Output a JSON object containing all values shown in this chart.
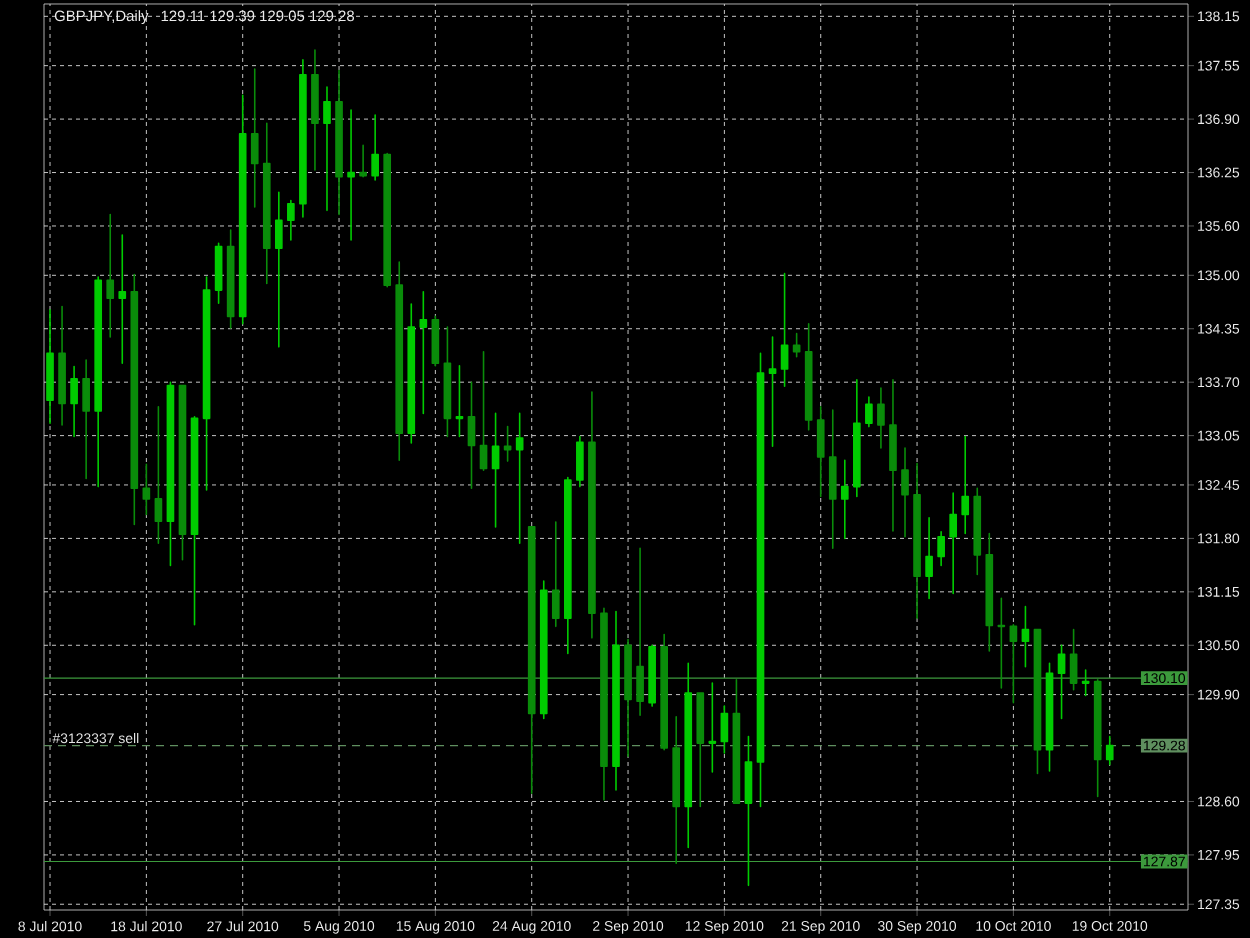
{
  "chart_data": {
    "type": "candlestick",
    "title": "GBPJPY,Daily",
    "subtitle": "129.11 129.39 129.05 129.28",
    "categories": [
      "8 Jul 2010",
      null,
      null,
      null,
      null,
      null,
      null,
      null,
      "18 Jul 2010",
      null,
      null,
      null,
      null,
      null,
      null,
      null,
      "27 Jul 2010",
      null,
      null,
      null,
      null,
      null,
      null,
      null,
      "5 Aug 2010",
      null,
      null,
      null,
      null,
      null,
      null,
      null,
      "15 Aug 2010",
      null,
      null,
      null,
      null,
      null,
      null,
      null,
      "24 Aug 2010",
      null,
      null,
      null,
      null,
      null,
      null,
      null,
      "2 Sep 2010",
      null,
      null,
      null,
      null,
      null,
      null,
      null,
      "12 Sep 2010",
      null,
      null,
      null,
      null,
      null,
      null,
      null,
      "21 Sep 2010",
      null,
      null,
      null,
      null,
      null,
      null,
      null,
      "30 Sep 2010",
      null,
      null,
      null,
      null,
      null,
      null,
      null,
      "10 Oct 2010",
      null,
      null,
      null,
      null,
      null,
      null,
      null,
      "19 Oct 2010",
      null,
      null,
      null,
      null,
      null,
      null
    ],
    "ohlc": [
      [
        133.48,
        134.58,
        133.2,
        134.05
      ],
      [
        134.05,
        134.62,
        133.18,
        133.44
      ],
      [
        133.44,
        133.89,
        133.04,
        133.74
      ],
      [
        133.74,
        133.97,
        132.53,
        133.35
      ],
      [
        133.35,
        134.98,
        132.43,
        134.94
      ],
      [
        134.94,
        135.74,
        134.25,
        134.72
      ],
      [
        134.72,
        135.49,
        133.93,
        134.8
      ],
      [
        134.8,
        135.01,
        131.97,
        132.41
      ],
      [
        132.41,
        132.7,
        132.09,
        132.28
      ],
      [
        132.28,
        133.4,
        131.74,
        132.01
      ],
      [
        132.01,
        133.7,
        131.47,
        133.66
      ],
      [
        133.66,
        133.66,
        131.54,
        131.85
      ],
      [
        131.85,
        133.28,
        130.75,
        133.26
      ],
      [
        133.26,
        134.98,
        132.39,
        134.82
      ],
      [
        134.82,
        135.39,
        134.66,
        135.35
      ],
      [
        135.35,
        135.55,
        134.36,
        134.5
      ],
      [
        134.5,
        137.19,
        134.41,
        136.72
      ],
      [
        136.72,
        137.51,
        135.83,
        136.36
      ],
      [
        136.36,
        136.85,
        134.9,
        135.33
      ],
      [
        135.33,
        136.01,
        134.13,
        135.67
      ],
      [
        135.67,
        135.91,
        135.43,
        135.87
      ],
      [
        135.87,
        137.62,
        135.71,
        137.44
      ],
      [
        137.44,
        137.74,
        136.28,
        136.85
      ],
      [
        136.85,
        137.29,
        135.79,
        137.11
      ],
      [
        137.11,
        137.49,
        135.74,
        136.2
      ],
      [
        136.2,
        137.01,
        135.43,
        136.25
      ],
      [
        136.25,
        136.58,
        136.2,
        136.21
      ],
      [
        136.21,
        136.95,
        136.16,
        136.47
      ],
      [
        136.47,
        136.48,
        134.86,
        134.88
      ],
      [
        134.88,
        135.16,
        132.75,
        133.08
      ],
      [
        133.08,
        134.65,
        132.96,
        134.37
      ],
      [
        134.37,
        134.8,
        133.32,
        134.46
      ],
      [
        134.46,
        134.5,
        133.9,
        133.93
      ],
      [
        133.93,
        134.37,
        133.04,
        133.26
      ],
      [
        133.26,
        133.9,
        133.04,
        133.28
      ],
      [
        133.28,
        133.7,
        132.41,
        132.93
      ],
      [
        132.93,
        134.07,
        132.63,
        132.65
      ],
      [
        132.65,
        133.32,
        131.94,
        132.92
      ],
      [
        132.92,
        133.16,
        132.74,
        132.88
      ],
      [
        132.88,
        133.32,
        131.74,
        133.02
      ],
      [
        131.94,
        131.94,
        128.7,
        129.67
      ],
      [
        129.67,
        131.28,
        129.61,
        131.17
      ],
      [
        131.17,
        132.0,
        130.73,
        130.83
      ],
      [
        130.83,
        132.54,
        130.4,
        132.51
      ],
      [
        132.51,
        133.04,
        132.43,
        132.97
      ],
      [
        132.97,
        133.58,
        130.59,
        130.89
      ],
      [
        130.89,
        130.95,
        128.62,
        129.03
      ],
      [
        129.03,
        130.91,
        128.74,
        130.5
      ],
      [
        130.5,
        130.57,
        129.15,
        129.84
      ],
      [
        130.24,
        131.68,
        129.65,
        129.82
      ],
      [
        129.8,
        130.5,
        129.76,
        130.48
      ],
      [
        130.48,
        130.63,
        129.23,
        129.25
      ],
      [
        129.25,
        129.63,
        127.85,
        128.54
      ],
      [
        128.54,
        130.28,
        128.04,
        129.92
      ],
      [
        129.92,
        129.92,
        128.54,
        129.31
      ],
      [
        129.31,
        130.04,
        128.96,
        129.33
      ],
      [
        129.33,
        129.76,
        129.19,
        129.67
      ],
      [
        129.67,
        130.08,
        128.58,
        128.58
      ],
      [
        128.58,
        129.39,
        127.58,
        129.08
      ],
      [
        129.08,
        134.05,
        128.54,
        133.81
      ],
      [
        133.81,
        134.25,
        132.92,
        133.86
      ],
      [
        133.86,
        135.02,
        133.65,
        134.15
      ],
      [
        134.15,
        134.29,
        134.01,
        134.07
      ],
      [
        134.07,
        134.41,
        133.12,
        133.24
      ],
      [
        133.24,
        133.4,
        132.31,
        132.79
      ],
      [
        132.79,
        133.36,
        131.68,
        132.28
      ],
      [
        132.28,
        132.75,
        131.8,
        132.43
      ],
      [
        132.43,
        133.73,
        132.31,
        133.2
      ],
      [
        133.2,
        133.52,
        133.16,
        133.43
      ],
      [
        133.43,
        133.63,
        132.9,
        133.18
      ],
      [
        133.18,
        133.73,
        131.89,
        132.63
      ],
      [
        132.63,
        132.9,
        131.82,
        132.33
      ],
      [
        132.33,
        132.71,
        130.83,
        131.34
      ],
      [
        131.34,
        132.05,
        131.07,
        131.58
      ],
      [
        131.58,
        131.88,
        131.47,
        131.82
      ],
      [
        131.82,
        132.35,
        131.13,
        132.09
      ],
      [
        132.09,
        133.04,
        131.86,
        132.31
      ],
      [
        132.31,
        132.41,
        131.36,
        131.6
      ],
      [
        131.6,
        131.86,
        130.43,
        130.74
      ],
      [
        130.74,
        131.07,
        129.98,
        130.73
      ],
      [
        130.73,
        130.75,
        129.8,
        130.55
      ],
      [
        130.55,
        130.97,
        130.24,
        130.69
      ],
      [
        130.69,
        130.69,
        128.94,
        129.23
      ],
      [
        129.23,
        130.28,
        128.97,
        130.16
      ],
      [
        130.16,
        130.5,
        129.61,
        130.39
      ],
      [
        130.39,
        130.69,
        129.96,
        130.04
      ],
      [
        130.04,
        130.2,
        129.89,
        130.06
      ],
      [
        130.06,
        130.08,
        128.66,
        129.11
      ],
      [
        129.11,
        129.39,
        129.05,
        129.28
      ],
      null,
      null,
      null,
      null,
      null,
      null
    ],
    "colors": [
      "#00cc00",
      "#0a8c0a",
      "#00cc00",
      "#0a8c0a",
      "#00cc00",
      "#0a8c0a",
      "#00cc00",
      "#0a8c0a",
      "#0a8c0a",
      "#0a8c0a",
      "#00cc00",
      "#0a8c0a",
      "#00cc00",
      "#00cc00",
      "#00cc00",
      "#0a8c0a",
      "#00cc00",
      "#0a8c0a",
      "#0a8c0a",
      "#00cc00",
      "#00cc00",
      "#00cc00",
      "#0a8c0a",
      "#00cc00",
      "#0a8c0a",
      "#00cc00",
      "#0a8c0a",
      "#00cc00",
      "#0a8c0a",
      "#0a8c0a",
      "#00cc00",
      "#00cc00",
      "#0a8c0a",
      "#0a8c0a",
      "#00cc00",
      "#0a8c0a",
      "#0a8c0a",
      "#00cc00",
      "#0a8c0a",
      "#00cc00",
      "#0a8c0a",
      "#00cc00",
      "#0a8c0a",
      "#00cc00",
      "#00cc00",
      "#0a8c0a",
      "#0a8c0a",
      "#00cc00",
      "#0a8c0a",
      "#0a8c0a",
      "#00cc00",
      "#0a8c0a",
      "#0a8c0a",
      "#00cc00",
      "#0a8c0a",
      "#00cc00",
      "#00cc00",
      "#0a8c0a",
      "#00cc00",
      "#00cc00",
      "#00cc00",
      "#00cc00",
      "#0a8c0a",
      "#0a8c0a",
      "#0a8c0a",
      "#0a8c0a",
      "#00cc00",
      "#00cc00",
      "#00cc00",
      "#0a8c0a",
      "#0a8c0a",
      "#0a8c0a",
      "#0a8c0a",
      "#00cc00",
      "#00cc00",
      "#00cc00",
      "#00cc00",
      "#0a8c0a",
      "#0a8c0a",
      "#0a8c0a",
      "#0a8c0a",
      "#00cc00",
      "#0a8c0a",
      "#00cc00",
      "#00cc00",
      "#0a8c0a",
      "#00cc00",
      "#0a8c0a",
      "#00cc00",
      null,
      null,
      null,
      null,
      null,
      null
    ],
    "ylim": [
      127.28,
      138.3
    ],
    "yticks": [
      {
        "value": 138.15,
        "label": "138.15"
      },
      {
        "value": 137.55,
        "label": "137.55"
      },
      {
        "value": 136.9,
        "label": "136.90"
      },
      {
        "value": 136.25,
        "label": "136.25"
      },
      {
        "value": 135.6,
        "label": "135.60"
      },
      {
        "value": 135.0,
        "label": "135.00"
      },
      {
        "value": 134.35,
        "label": "134.35"
      },
      {
        "value": 133.7,
        "label": "133.70"
      },
      {
        "value": 133.05,
        "label": "133.05"
      },
      {
        "value": 132.45,
        "label": "132.45"
      },
      {
        "value": 131.8,
        "label": "131.80"
      },
      {
        "value": 131.15,
        "label": "131.15"
      },
      {
        "value": 130.5,
        "label": "130.50"
      },
      {
        "value": 129.9,
        "label": "129.90"
      },
      {
        "value": 128.6,
        "label": "128.60"
      },
      {
        "value": 127.95,
        "label": "127.95"
      },
      {
        "value": 127.35,
        "label": "127.35"
      }
    ],
    "grid": true,
    "ref_lines": [
      {
        "axis": "y",
        "value": 130.1,
        "label": "130.10",
        "color": "#3c9a3c",
        "line_style": "solid"
      },
      {
        "axis": "y",
        "value": 129.28,
        "label": "129.28",
        "color": "#5f8f5f",
        "line_style": "dashed"
      },
      {
        "axis": "y",
        "value": 127.87,
        "label": "127.87",
        "color": "#3c9a3c",
        "line_style": "solid"
      }
    ],
    "annotations": [
      {
        "text": "#3123337 sell",
        "y": 129.28
      }
    ]
  }
}
